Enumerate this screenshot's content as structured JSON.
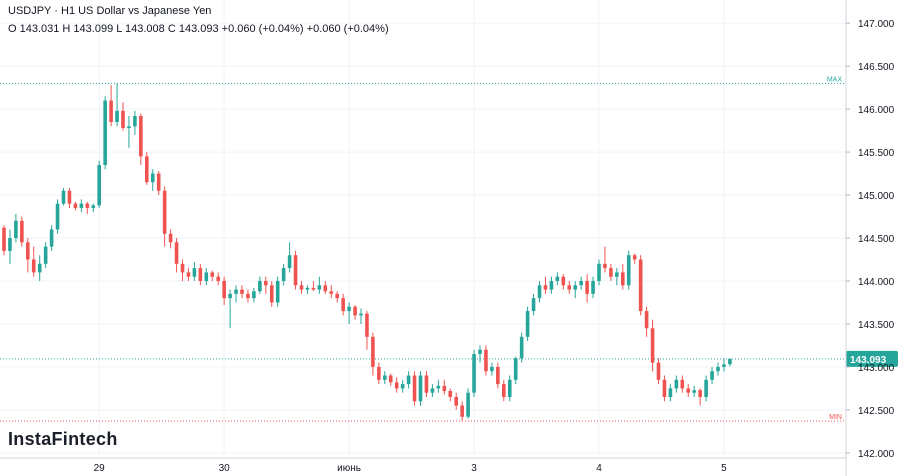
{
  "header": {
    "symbol": "USDJPY",
    "separator": "·",
    "description": "H1 US Dollar vs Japanese Yen",
    "ohlc": "O 143.031 H 143.099 L 143.008 C 143.093 +0.060 (+0.04%) +0.060 (+0.04%)"
  },
  "brand": {
    "logo_text": "InstaFintech"
  },
  "colors": {
    "up": "#26a69a",
    "down": "#ef5350",
    "max_line": "#26a69a",
    "min_line": "#ef5350",
    "price_line": "#26a69a",
    "price_label_bg": "#26a69a"
  },
  "chart_data": {
    "type": "candlestick",
    "ylim": [
      141.94,
      147.27
    ],
    "y_ticks": [
      "147.000",
      "146.500",
      "146.000",
      "145.500",
      "145.000",
      "144.500",
      "144.000",
      "143.500",
      "143.000",
      "142.500",
      "142.000"
    ],
    "x_labels": [
      {
        "label": "29",
        "index": 16
      },
      {
        "label": "30",
        "index": 37
      },
      {
        "label": "июнь",
        "index": 58
      },
      {
        "label": "3",
        "index": 79
      },
      {
        "label": "4",
        "index": 100
      },
      {
        "label": "5",
        "index": 121
      }
    ],
    "max": {
      "label": "MAX",
      "value": 146.3
    },
    "min": {
      "label": "MIN",
      "value": 142.37
    },
    "last_price": {
      "label": "143.093",
      "value": 143.093
    },
    "candles": [
      [
        144.62,
        144.65,
        144.3,
        144.35
      ],
      [
        144.35,
        144.6,
        144.2,
        144.5
      ],
      [
        144.5,
        144.78,
        144.45,
        144.7
      ],
      [
        144.7,
        144.75,
        144.4,
        144.45
      ],
      [
        144.45,
        144.5,
        144.1,
        144.25
      ],
      [
        144.25,
        144.4,
        144.05,
        144.1
      ],
      [
        144.1,
        144.3,
        144.0,
        144.2
      ],
      [
        144.2,
        144.45,
        144.15,
        144.4
      ],
      [
        144.4,
        144.65,
        144.35,
        144.6
      ],
      [
        144.6,
        144.95,
        144.55,
        144.9
      ],
      [
        144.9,
        145.08,
        144.88,
        145.05
      ],
      [
        145.05,
        145.08,
        144.85,
        144.9
      ],
      [
        144.9,
        144.92,
        144.82,
        144.85
      ],
      [
        144.85,
        144.95,
        144.8,
        144.9
      ],
      [
        144.9,
        144.92,
        144.78,
        144.85
      ],
      [
        144.85,
        144.9,
        144.8,
        144.88
      ],
      [
        144.88,
        145.4,
        144.85,
        145.35
      ],
      [
        145.35,
        146.15,
        145.3,
        146.1
      ],
      [
        146.1,
        146.28,
        145.8,
        145.85
      ],
      [
        145.85,
        146.3,
        145.8,
        145.98
      ],
      [
        145.98,
        146.08,
        145.75,
        145.78
      ],
      [
        145.78,
        145.92,
        145.55,
        145.8
      ],
      [
        145.8,
        145.98,
        145.7,
        145.92
      ],
      [
        145.92,
        145.95,
        145.35,
        145.45
      ],
      [
        145.45,
        145.5,
        145.12,
        145.15
      ],
      [
        145.15,
        145.3,
        145.05,
        145.25
      ],
      [
        145.25,
        145.28,
        145.0,
        145.05
      ],
      [
        145.05,
        145.1,
        144.4,
        144.55
      ],
      [
        144.55,
        144.6,
        144.38,
        144.45
      ],
      [
        144.45,
        144.5,
        144.1,
        144.2
      ],
      [
        144.2,
        144.25,
        144.0,
        144.1
      ],
      [
        144.1,
        144.15,
        144.0,
        144.05
      ],
      [
        144.05,
        144.22,
        144.0,
        144.15
      ],
      [
        144.15,
        144.2,
        143.95,
        144.0
      ],
      [
        144.0,
        144.15,
        143.95,
        144.1
      ],
      [
        144.1,
        144.12,
        144.0,
        144.05
      ],
      [
        144.05,
        144.1,
        143.95,
        144.0
      ],
      [
        144.0,
        144.05,
        143.72,
        143.8
      ],
      [
        143.8,
        143.9,
        143.45,
        143.85
      ],
      [
        143.85,
        143.95,
        143.75,
        143.9
      ],
      [
        143.9,
        143.95,
        143.8,
        143.85
      ],
      [
        143.85,
        143.9,
        143.75,
        143.8
      ],
      [
        143.8,
        143.92,
        143.75,
        143.88
      ],
      [
        143.88,
        144.05,
        143.85,
        144.0
      ],
      [
        144.0,
        144.05,
        143.85,
        143.95
      ],
      [
        143.95,
        144.0,
        143.7,
        143.75
      ],
      [
        143.75,
        144.05,
        143.7,
        144.0
      ],
      [
        144.0,
        144.2,
        143.95,
        144.15
      ],
      [
        144.15,
        144.45,
        144.1,
        144.3
      ],
      [
        144.3,
        144.35,
        143.9,
        143.95
      ],
      [
        143.95,
        144.0,
        143.85,
        143.9
      ],
      [
        143.9,
        143.95,
        143.85,
        143.92
      ],
      [
        143.92,
        144.0,
        143.88,
        143.9
      ],
      [
        143.9,
        144.05,
        143.85,
        143.95
      ],
      [
        143.95,
        144.0,
        143.85,
        143.88
      ],
      [
        143.88,
        143.95,
        143.8,
        143.85
      ],
      [
        143.85,
        143.88,
        143.75,
        143.8
      ],
      [
        143.8,
        143.85,
        143.6,
        143.65
      ],
      [
        143.65,
        143.75,
        143.5,
        143.7
      ],
      [
        143.7,
        143.72,
        143.55,
        143.6
      ],
      [
        143.6,
        143.68,
        143.5,
        143.62
      ],
      [
        143.62,
        143.65,
        143.2,
        143.35
      ],
      [
        143.35,
        143.4,
        142.9,
        143.0
      ],
      [
        143.0,
        143.05,
        142.8,
        142.85
      ],
      [
        142.85,
        142.95,
        142.8,
        142.9
      ],
      [
        142.9,
        142.92,
        142.78,
        142.82
      ],
      [
        142.82,
        142.88,
        142.7,
        142.75
      ],
      [
        142.75,
        142.85,
        142.7,
        142.8
      ],
      [
        142.8,
        142.95,
        142.75,
        142.9
      ],
      [
        142.9,
        142.95,
        142.55,
        142.6
      ],
      [
        142.6,
        142.95,
        142.55,
        142.9
      ],
      [
        142.9,
        142.95,
        142.65,
        142.7
      ],
      [
        142.7,
        142.8,
        142.65,
        142.75
      ],
      [
        142.75,
        142.85,
        142.7,
        142.78
      ],
      [
        142.78,
        142.85,
        142.68,
        142.72
      ],
      [
        142.72,
        142.75,
        142.6,
        142.65
      ],
      [
        142.65,
        142.7,
        142.5,
        142.55
      ],
      [
        142.55,
        142.6,
        142.37,
        142.42
      ],
      [
        142.42,
        142.75,
        142.4,
        142.7
      ],
      [
        142.7,
        143.2,
        142.65,
        143.15
      ],
      [
        143.15,
        143.25,
        143.05,
        143.2
      ],
      [
        143.2,
        143.25,
        142.9,
        142.95
      ],
      [
        142.95,
        143.05,
        142.9,
        143.0
      ],
      [
        143.0,
        143.05,
        142.75,
        142.8
      ],
      [
        142.8,
        142.85,
        142.6,
        142.65
      ],
      [
        142.65,
        142.9,
        142.6,
        142.85
      ],
      [
        142.85,
        143.12,
        142.8,
        143.1
      ],
      [
        143.1,
        143.4,
        143.05,
        143.35
      ],
      [
        143.35,
        143.7,
        143.3,
        143.65
      ],
      [
        143.65,
        143.85,
        143.6,
        143.8
      ],
      [
        143.8,
        144.0,
        143.75,
        143.95
      ],
      [
        143.95,
        144.05,
        143.85,
        143.9
      ],
      [
        143.9,
        144.05,
        143.85,
        144.0
      ],
      [
        144.0,
        144.1,
        143.95,
        144.05
      ],
      [
        144.05,
        144.08,
        143.9,
        143.95
      ],
      [
        143.95,
        144.0,
        143.85,
        143.9
      ],
      [
        143.9,
        144.0,
        143.8,
        143.95
      ],
      [
        143.95,
        144.05,
        143.9,
        144.0
      ],
      [
        144.0,
        144.08,
        143.75,
        143.85
      ],
      [
        143.85,
        144.05,
        143.8,
        144.0
      ],
      [
        144.0,
        144.25,
        143.95,
        144.2
      ],
      [
        144.2,
        144.4,
        144.1,
        144.15
      ],
      [
        144.15,
        144.2,
        144.0,
        144.05
      ],
      [
        144.05,
        144.15,
        143.95,
        144.1
      ],
      [
        144.1,
        144.2,
        143.9,
        143.95
      ],
      [
        143.95,
        144.35,
        143.9,
        144.3
      ],
      [
        144.3,
        144.32,
        144.2,
        144.25
      ],
      [
        144.25,
        144.3,
        143.6,
        143.65
      ],
      [
        143.65,
        143.7,
        143.35,
        143.45
      ],
      [
        143.45,
        143.55,
        142.95,
        143.05
      ],
      [
        143.05,
        143.1,
        142.8,
        142.85
      ],
      [
        142.85,
        142.9,
        142.6,
        142.65
      ],
      [
        142.65,
        142.8,
        142.6,
        142.75
      ],
      [
        142.75,
        142.9,
        142.7,
        142.85
      ],
      [
        142.85,
        142.9,
        142.7,
        142.75
      ],
      [
        142.75,
        142.8,
        142.65,
        142.7
      ],
      [
        142.7,
        142.78,
        142.65,
        142.73
      ],
      [
        142.73,
        142.75,
        142.55,
        142.65
      ],
      [
        142.65,
        142.9,
        142.6,
        142.85
      ],
      [
        142.85,
        143.0,
        142.8,
        142.95
      ],
      [
        142.95,
        143.05,
        142.9,
        143.0
      ],
      [
        143.0,
        143.1,
        142.95,
        143.03
      ],
      [
        143.031,
        143.099,
        143.008,
        143.093
      ]
    ]
  }
}
